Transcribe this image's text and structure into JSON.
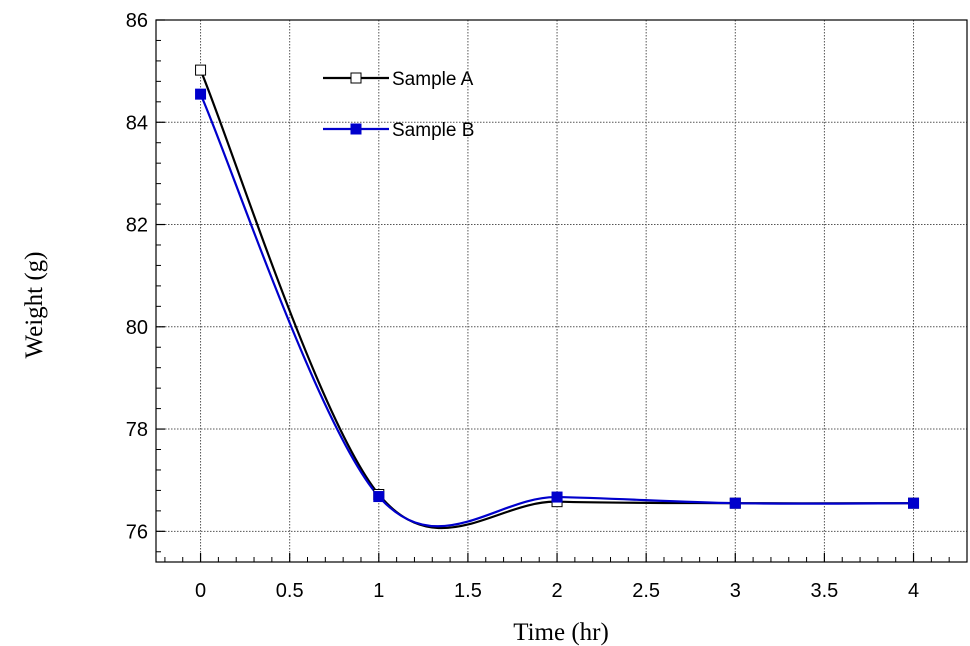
{
  "chart_data": {
    "type": "line",
    "title": "",
    "xlabel": "Time (hr)",
    "ylabel": "Weight  (g)",
    "xlim": [
      -0.25,
      4.3
    ],
    "ylim": [
      75.4,
      86
    ],
    "xticks": [
      0,
      0.5,
      1,
      1.5,
      2,
      2.5,
      3,
      3.5,
      4
    ],
    "yticks": [
      76,
      78,
      80,
      82,
      84,
      86
    ],
    "grid": true,
    "legend_position": "top-center",
    "series": [
      {
        "name": "Sample A",
        "x": [
          0,
          1,
          2,
          3,
          4
        ],
        "y": [
          85.02,
          76.72,
          76.58,
          76.55,
          76.55
        ],
        "color": "#000000",
        "marker": "open-square"
      },
      {
        "name": "Sample B",
        "x": [
          0,
          1,
          2,
          3,
          4
        ],
        "y": [
          84.55,
          76.68,
          76.67,
          76.55,
          76.55
        ],
        "color": "#0000cc",
        "marker": "filled-square"
      }
    ]
  }
}
